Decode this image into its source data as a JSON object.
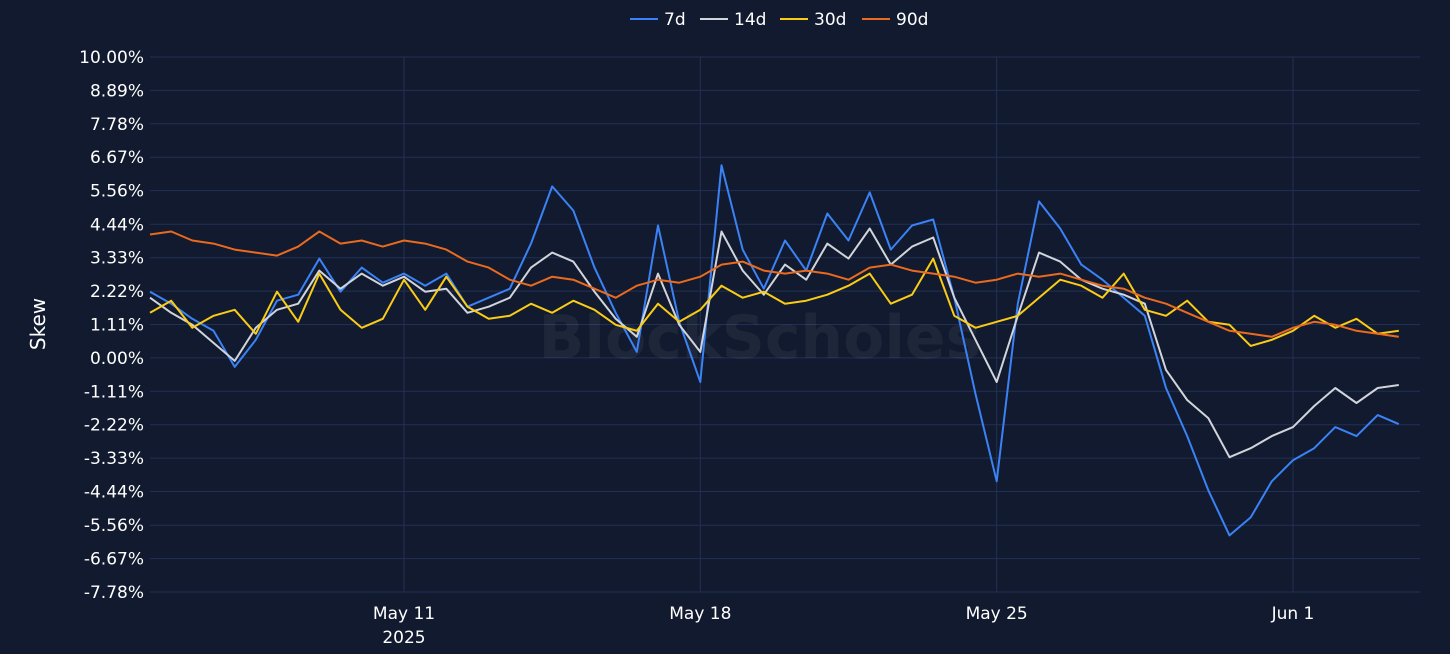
{
  "chart_data": {
    "type": "line",
    "title": "",
    "xlabel": "",
    "ylabel": "Skew",
    "watermark": "BlockScholes",
    "ylim": [
      -7.78,
      10.0
    ],
    "xlim": [
      "2025-05-05",
      "2025-06-04"
    ],
    "grid": true,
    "legend_position": "top-center",
    "background_color": "#111a2e",
    "grid_color": "#223055",
    "y_ticks": [
      -7.78,
      -6.67,
      -5.56,
      -4.44,
      -3.33,
      -2.22,
      -1.11,
      0.0,
      1.11,
      2.22,
      3.33,
      4.44,
      5.56,
      6.67,
      7.78,
      8.89,
      10.0
    ],
    "y_tick_labels": [
      "-7.78%",
      "-6.67%",
      "-5.56%",
      "-4.44%",
      "-3.33%",
      "-2.22%",
      "-1.11%",
      "0.00%",
      "1.11%",
      "2.22%",
      "3.33%",
      "4.44%",
      "5.56%",
      "6.67%",
      "7.78%",
      "8.89%",
      "10.00%"
    ],
    "x_ticks": [
      {
        "date": "2025-05-11",
        "label": "May 11",
        "sublabel": "2025"
      },
      {
        "date": "2025-05-18",
        "label": "May 18",
        "sublabel": ""
      },
      {
        "date": "2025-05-25",
        "label": "May 25",
        "sublabel": ""
      },
      {
        "date": "2025-06-01",
        "label": "Jun 1",
        "sublabel": ""
      }
    ],
    "series": [
      {
        "name": "7d",
        "color": "#3b82f6",
        "points": [
          [
            "2025-05-05",
            2.2
          ],
          [
            "2025-05-05T12:00",
            1.8
          ],
          [
            "2025-05-06",
            1.3
          ],
          [
            "2025-05-06T12:00",
            0.9
          ],
          [
            "2025-05-07",
            -0.3
          ],
          [
            "2025-05-07T12:00",
            0.6
          ],
          [
            "2025-05-08",
            1.9
          ],
          [
            "2025-05-08T12:00",
            2.1
          ],
          [
            "2025-05-09",
            3.3
          ],
          [
            "2025-05-09T12:00",
            2.2
          ],
          [
            "2025-05-10",
            3.0
          ],
          [
            "2025-05-10T12:00",
            2.5
          ],
          [
            "2025-05-11",
            2.8
          ],
          [
            "2025-05-11T12:00",
            2.4
          ],
          [
            "2025-05-12",
            2.8
          ],
          [
            "2025-05-12T12:00",
            1.7
          ],
          [
            "2025-05-13",
            2.0
          ],
          [
            "2025-05-13T12:00",
            2.3
          ],
          [
            "2025-05-14",
            3.8
          ],
          [
            "2025-05-14T12:00",
            5.7
          ],
          [
            "2025-05-15",
            4.9
          ],
          [
            "2025-05-15T12:00",
            3.0
          ],
          [
            "2025-05-16",
            1.5
          ],
          [
            "2025-05-16T12:00",
            0.2
          ],
          [
            "2025-05-17",
            4.4
          ],
          [
            "2025-05-17T12:00",
            1.2
          ],
          [
            "2025-05-18",
            -0.8
          ],
          [
            "2025-05-18T12:00",
            6.4
          ],
          [
            "2025-05-19",
            3.6
          ],
          [
            "2025-05-19T12:00",
            2.3
          ],
          [
            "2025-05-20",
            3.9
          ],
          [
            "2025-05-20T12:00",
            2.9
          ],
          [
            "2025-05-21",
            4.8
          ],
          [
            "2025-05-21T12:00",
            3.9
          ],
          [
            "2025-05-22",
            5.5
          ],
          [
            "2025-05-22T12:00",
            3.6
          ],
          [
            "2025-05-23",
            4.4
          ],
          [
            "2025-05-23T12:00",
            4.6
          ],
          [
            "2025-05-24",
            2.0
          ],
          [
            "2025-05-24T12:00",
            -1.2
          ],
          [
            "2025-05-25",
            -4.1
          ],
          [
            "2025-05-25T12:00",
            1.8
          ],
          [
            "2025-05-26",
            5.2
          ],
          [
            "2025-05-26T12:00",
            4.3
          ],
          [
            "2025-05-27",
            3.1
          ],
          [
            "2025-05-27T12:00",
            2.6
          ],
          [
            "2025-05-28",
            2.0
          ],
          [
            "2025-05-28T12:00",
            1.4
          ],
          [
            "2025-05-29",
            -1.0
          ],
          [
            "2025-05-29T12:00",
            -2.6
          ],
          [
            "2025-05-30",
            -4.4
          ],
          [
            "2025-05-30T12:00",
            -5.9
          ],
          [
            "2025-05-31",
            -5.3
          ],
          [
            "2025-05-31T12:00",
            -4.1
          ],
          [
            "2025-06-01",
            -3.4
          ],
          [
            "2025-06-01T12:00",
            -3.0
          ],
          [
            "2025-06-02",
            -2.3
          ],
          [
            "2025-06-02T12:00",
            -2.6
          ],
          [
            "2025-06-03",
            -1.9
          ],
          [
            "2025-06-03T12:00",
            -2.2
          ]
        ]
      },
      {
        "name": "14d",
        "color": "#d1d5db",
        "points": [
          [
            "2025-05-05",
            2.0
          ],
          [
            "2025-05-05T12:00",
            1.5
          ],
          [
            "2025-05-06",
            1.1
          ],
          [
            "2025-05-06T12:00",
            0.5
          ],
          [
            "2025-05-07",
            -0.1
          ],
          [
            "2025-05-07T12:00",
            1.0
          ],
          [
            "2025-05-08",
            1.6
          ],
          [
            "2025-05-08T12:00",
            1.8
          ],
          [
            "2025-05-09",
            2.9
          ],
          [
            "2025-05-09T12:00",
            2.3
          ],
          [
            "2025-05-10",
            2.8
          ],
          [
            "2025-05-10T12:00",
            2.4
          ],
          [
            "2025-05-11",
            2.7
          ],
          [
            "2025-05-11T12:00",
            2.2
          ],
          [
            "2025-05-12",
            2.3
          ],
          [
            "2025-05-12T12:00",
            1.5
          ],
          [
            "2025-05-13",
            1.7
          ],
          [
            "2025-05-13T12:00",
            2.0
          ],
          [
            "2025-05-14",
            3.0
          ],
          [
            "2025-05-14T12:00",
            3.5
          ],
          [
            "2025-05-15",
            3.2
          ],
          [
            "2025-05-15T12:00",
            2.2
          ],
          [
            "2025-05-16",
            1.3
          ],
          [
            "2025-05-16T12:00",
            0.7
          ],
          [
            "2025-05-17",
            2.8
          ],
          [
            "2025-05-17T12:00",
            1.1
          ],
          [
            "2025-05-18",
            0.2
          ],
          [
            "2025-05-18T12:00",
            4.2
          ],
          [
            "2025-05-19",
            2.9
          ],
          [
            "2025-05-19T12:00",
            2.1
          ],
          [
            "2025-05-20",
            3.1
          ],
          [
            "2025-05-20T12:00",
            2.6
          ],
          [
            "2025-05-21",
            3.8
          ],
          [
            "2025-05-21T12:00",
            3.3
          ],
          [
            "2025-05-22",
            4.3
          ],
          [
            "2025-05-22T12:00",
            3.1
          ],
          [
            "2025-05-23",
            3.7
          ],
          [
            "2025-05-23T12:00",
            4.0
          ],
          [
            "2025-05-24",
            2.0
          ],
          [
            "2025-05-24T12:00",
            0.6
          ],
          [
            "2025-05-25",
            -0.8
          ],
          [
            "2025-05-25T12:00",
            1.4
          ],
          [
            "2025-05-26",
            3.5
          ],
          [
            "2025-05-26T12:00",
            3.2
          ],
          [
            "2025-05-27",
            2.6
          ],
          [
            "2025-05-27T12:00",
            2.3
          ],
          [
            "2025-05-28",
            2.1
          ],
          [
            "2025-05-28T12:00",
            1.8
          ],
          [
            "2025-05-29",
            -0.4
          ],
          [
            "2025-05-29T12:00",
            -1.4
          ],
          [
            "2025-05-30",
            -2.0
          ],
          [
            "2025-05-30T12:00",
            -3.3
          ],
          [
            "2025-05-31",
            -3.0
          ],
          [
            "2025-05-31T12:00",
            -2.6
          ],
          [
            "2025-06-01",
            -2.3
          ],
          [
            "2025-06-01T12:00",
            -1.6
          ],
          [
            "2025-06-02",
            -1.0
          ],
          [
            "2025-06-02T12:00",
            -1.5
          ],
          [
            "2025-06-03",
            -1.0
          ],
          [
            "2025-06-03T12:00",
            -0.9
          ]
        ]
      },
      {
        "name": "30d",
        "color": "#facc15",
        "points": [
          [
            "2025-05-05",
            1.5
          ],
          [
            "2025-05-05T12:00",
            1.9
          ],
          [
            "2025-05-06",
            1.0
          ],
          [
            "2025-05-06T12:00",
            1.4
          ],
          [
            "2025-05-07",
            1.6
          ],
          [
            "2025-05-07T12:00",
            0.8
          ],
          [
            "2025-05-08",
            2.2
          ],
          [
            "2025-05-08T12:00",
            1.2
          ],
          [
            "2025-05-09",
            2.8
          ],
          [
            "2025-05-09T12:00",
            1.6
          ],
          [
            "2025-05-10",
            1.0
          ],
          [
            "2025-05-10T12:00",
            1.3
          ],
          [
            "2025-05-11",
            2.6
          ],
          [
            "2025-05-11T12:00",
            1.6
          ],
          [
            "2025-05-12",
            2.7
          ],
          [
            "2025-05-12T12:00",
            1.7
          ],
          [
            "2025-05-13",
            1.3
          ],
          [
            "2025-05-13T12:00",
            1.4
          ],
          [
            "2025-05-14",
            1.8
          ],
          [
            "2025-05-14T12:00",
            1.5
          ],
          [
            "2025-05-15",
            1.9
          ],
          [
            "2025-05-15T12:00",
            1.6
          ],
          [
            "2025-05-16",
            1.1
          ],
          [
            "2025-05-16T12:00",
            0.9
          ],
          [
            "2025-05-17",
            1.8
          ],
          [
            "2025-05-17T12:00",
            1.2
          ],
          [
            "2025-05-18",
            1.6
          ],
          [
            "2025-05-18T12:00",
            2.4
          ],
          [
            "2025-05-19",
            2.0
          ],
          [
            "2025-05-19T12:00",
            2.2
          ],
          [
            "2025-05-20",
            1.8
          ],
          [
            "2025-05-20T12:00",
            1.9
          ],
          [
            "2025-05-21",
            2.1
          ],
          [
            "2025-05-21T12:00",
            2.4
          ],
          [
            "2025-05-22",
            2.8
          ],
          [
            "2025-05-22T12:00",
            1.8
          ],
          [
            "2025-05-23",
            2.1
          ],
          [
            "2025-05-23T12:00",
            3.3
          ],
          [
            "2025-05-24",
            1.4
          ],
          [
            "2025-05-24T12:00",
            1.0
          ],
          [
            "2025-05-25",
            1.2
          ],
          [
            "2025-05-25T12:00",
            1.4
          ],
          [
            "2025-05-26",
            2.0
          ],
          [
            "2025-05-26T12:00",
            2.6
          ],
          [
            "2025-05-27",
            2.4
          ],
          [
            "2025-05-27T12:00",
            2.0
          ],
          [
            "2025-05-28",
            2.8
          ],
          [
            "2025-05-28T12:00",
            1.6
          ],
          [
            "2025-05-29",
            1.4
          ],
          [
            "2025-05-29T12:00",
            1.9
          ],
          [
            "2025-05-30",
            1.2
          ],
          [
            "2025-05-30T12:00",
            1.1
          ],
          [
            "2025-05-31",
            0.4
          ],
          [
            "2025-05-31T12:00",
            0.6
          ],
          [
            "2025-06-01",
            0.9
          ],
          [
            "2025-06-01T12:00",
            1.4
          ],
          [
            "2025-06-02",
            1.0
          ],
          [
            "2025-06-02T12:00",
            1.3
          ],
          [
            "2025-06-03",
            0.8
          ],
          [
            "2025-06-03T12:00",
            0.9
          ]
        ]
      },
      {
        "name": "90d",
        "color": "#ea6a1e",
        "points": [
          [
            "2025-05-05",
            4.1
          ],
          [
            "2025-05-05T12:00",
            4.2
          ],
          [
            "2025-05-06",
            3.9
          ],
          [
            "2025-05-06T12:00",
            3.8
          ],
          [
            "2025-05-07",
            3.6
          ],
          [
            "2025-05-07T12:00",
            3.5
          ],
          [
            "2025-05-08",
            3.4
          ],
          [
            "2025-05-08T12:00",
            3.7
          ],
          [
            "2025-05-09",
            4.2
          ],
          [
            "2025-05-09T12:00",
            3.8
          ],
          [
            "2025-05-10",
            3.9
          ],
          [
            "2025-05-10T12:00",
            3.7
          ],
          [
            "2025-05-11",
            3.9
          ],
          [
            "2025-05-11T12:00",
            3.8
          ],
          [
            "2025-05-12",
            3.6
          ],
          [
            "2025-05-12T12:00",
            3.2
          ],
          [
            "2025-05-13",
            3.0
          ],
          [
            "2025-05-13T12:00",
            2.6
          ],
          [
            "2025-05-14",
            2.4
          ],
          [
            "2025-05-14T12:00",
            2.7
          ],
          [
            "2025-05-15",
            2.6
          ],
          [
            "2025-05-15T12:00",
            2.3
          ],
          [
            "2025-05-16",
            2.0
          ],
          [
            "2025-05-16T12:00",
            2.4
          ],
          [
            "2025-05-17",
            2.6
          ],
          [
            "2025-05-17T12:00",
            2.5
          ],
          [
            "2025-05-18",
            2.7
          ],
          [
            "2025-05-18T12:00",
            3.1
          ],
          [
            "2025-05-19",
            3.2
          ],
          [
            "2025-05-19T12:00",
            2.9
          ],
          [
            "2025-05-20",
            2.8
          ],
          [
            "2025-05-20T12:00",
            2.9
          ],
          [
            "2025-05-21",
            2.8
          ],
          [
            "2025-05-21T12:00",
            2.6
          ],
          [
            "2025-05-22",
            3.0
          ],
          [
            "2025-05-22T12:00",
            3.1
          ],
          [
            "2025-05-23",
            2.9
          ],
          [
            "2025-05-23T12:00",
            2.8
          ],
          [
            "2025-05-24",
            2.7
          ],
          [
            "2025-05-24T12:00",
            2.5
          ],
          [
            "2025-05-25",
            2.6
          ],
          [
            "2025-05-25T12:00",
            2.8
          ],
          [
            "2025-05-26",
            2.7
          ],
          [
            "2025-05-26T12:00",
            2.8
          ],
          [
            "2025-05-27",
            2.6
          ],
          [
            "2025-05-27T12:00",
            2.4
          ],
          [
            "2025-05-28",
            2.3
          ],
          [
            "2025-05-28T12:00",
            2.0
          ],
          [
            "2025-05-29",
            1.8
          ],
          [
            "2025-05-29T12:00",
            1.5
          ],
          [
            "2025-05-30",
            1.2
          ],
          [
            "2025-05-30T12:00",
            0.9
          ],
          [
            "2025-05-31",
            0.8
          ],
          [
            "2025-05-31T12:00",
            0.7
          ],
          [
            "2025-06-01",
            1.0
          ],
          [
            "2025-06-01T12:00",
            1.2
          ],
          [
            "2025-06-02",
            1.1
          ],
          [
            "2025-06-02T12:00",
            0.9
          ],
          [
            "2025-06-03",
            0.8
          ],
          [
            "2025-06-03T12:00",
            0.7
          ]
        ]
      }
    ]
  }
}
